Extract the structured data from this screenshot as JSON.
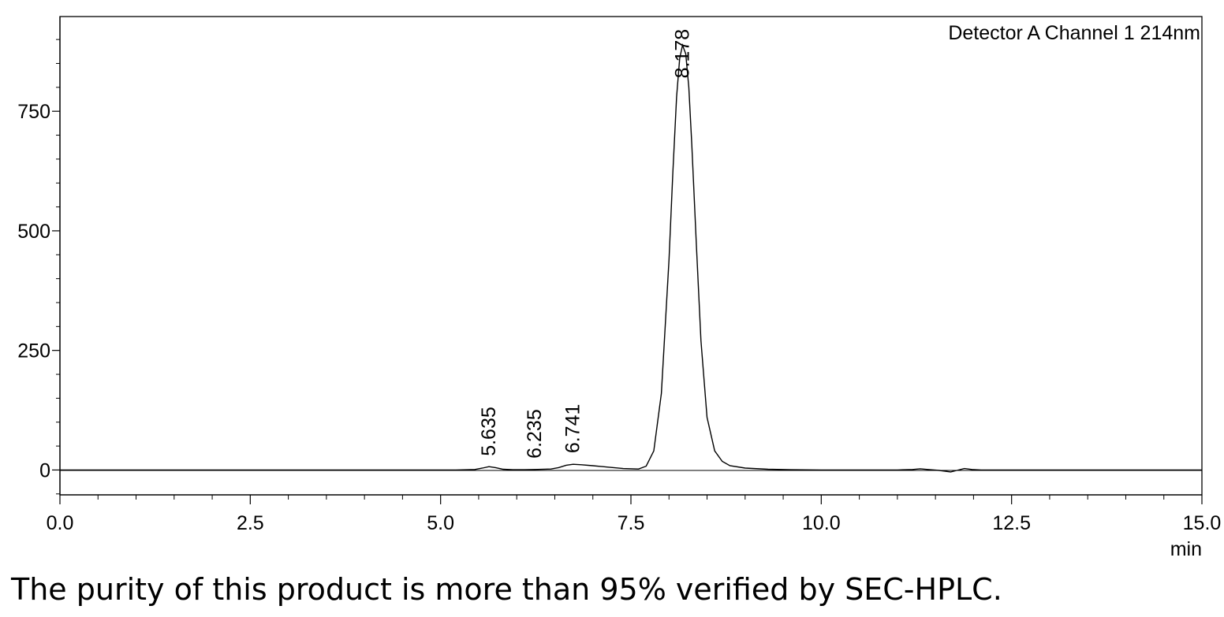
{
  "chart_data": {
    "type": "line",
    "annotation": "Detector A Channel 1 214nm",
    "xlabel": "min",
    "ylabel": "",
    "xlim": [
      0.0,
      15.0
    ],
    "ylim": [
      -52,
      948
    ],
    "x_ticks": [
      "0.0",
      "2.5",
      "5.0",
      "7.5",
      "10.0",
      "12.5",
      "15.0"
    ],
    "x_tick_values": [
      0,
      2.5,
      5,
      7.5,
      10,
      12.5,
      15
    ],
    "y_ticks": [
      "0",
      "250",
      "500",
      "750"
    ],
    "y_tick_values": [
      0,
      250,
      500,
      750
    ],
    "peak_labels": [
      {
        "x": 5.635,
        "y": 6,
        "label": "5.635"
      },
      {
        "x": 6.235,
        "y": 1,
        "label": "6.235"
      },
      {
        "x": 6.741,
        "y": 12,
        "label": "6.741"
      },
      {
        "x": 8.178,
        "y": 888,
        "label": "8.178"
      }
    ],
    "series": [
      {
        "values": [
          [
            0.0,
            0
          ],
          [
            5.2,
            0
          ],
          [
            5.45,
            1
          ],
          [
            5.55,
            4
          ],
          [
            5.635,
            7
          ],
          [
            5.72,
            5
          ],
          [
            5.82,
            1.5
          ],
          [
            5.95,
            0.5
          ],
          [
            6.1,
            0.5
          ],
          [
            6.235,
            1
          ],
          [
            6.45,
            2
          ],
          [
            6.55,
            5
          ],
          [
            6.65,
            10
          ],
          [
            6.741,
            12
          ],
          [
            6.85,
            11
          ],
          [
            7.0,
            9
          ],
          [
            7.2,
            6
          ],
          [
            7.4,
            3
          ],
          [
            7.6,
            2
          ],
          [
            7.7,
            8
          ],
          [
            7.8,
            40
          ],
          [
            7.9,
            160
          ],
          [
            8.0,
            440
          ],
          [
            8.05,
            620
          ],
          [
            8.1,
            780
          ],
          [
            8.14,
            860
          ],
          [
            8.178,
            888
          ],
          [
            8.22,
            870
          ],
          [
            8.26,
            800
          ],
          [
            8.3,
            680
          ],
          [
            8.36,
            470
          ],
          [
            8.42,
            270
          ],
          [
            8.5,
            110
          ],
          [
            8.6,
            40
          ],
          [
            8.7,
            18
          ],
          [
            8.8,
            9
          ],
          [
            9.0,
            4
          ],
          [
            9.3,
            1.5
          ],
          [
            9.6,
            0.5
          ],
          [
            10.0,
            0
          ],
          [
            11.0,
            0
          ],
          [
            11.2,
            1
          ],
          [
            11.3,
            2.5
          ],
          [
            11.4,
            1
          ],
          [
            11.55,
            -1
          ],
          [
            11.7,
            -4
          ],
          [
            11.78,
            -1
          ],
          [
            11.88,
            3
          ],
          [
            11.98,
            1
          ],
          [
            12.1,
            0
          ],
          [
            15.0,
            0
          ]
        ]
      }
    ]
  },
  "caption": "The purity of this product is more than 95% verified by SEC-HPLC."
}
